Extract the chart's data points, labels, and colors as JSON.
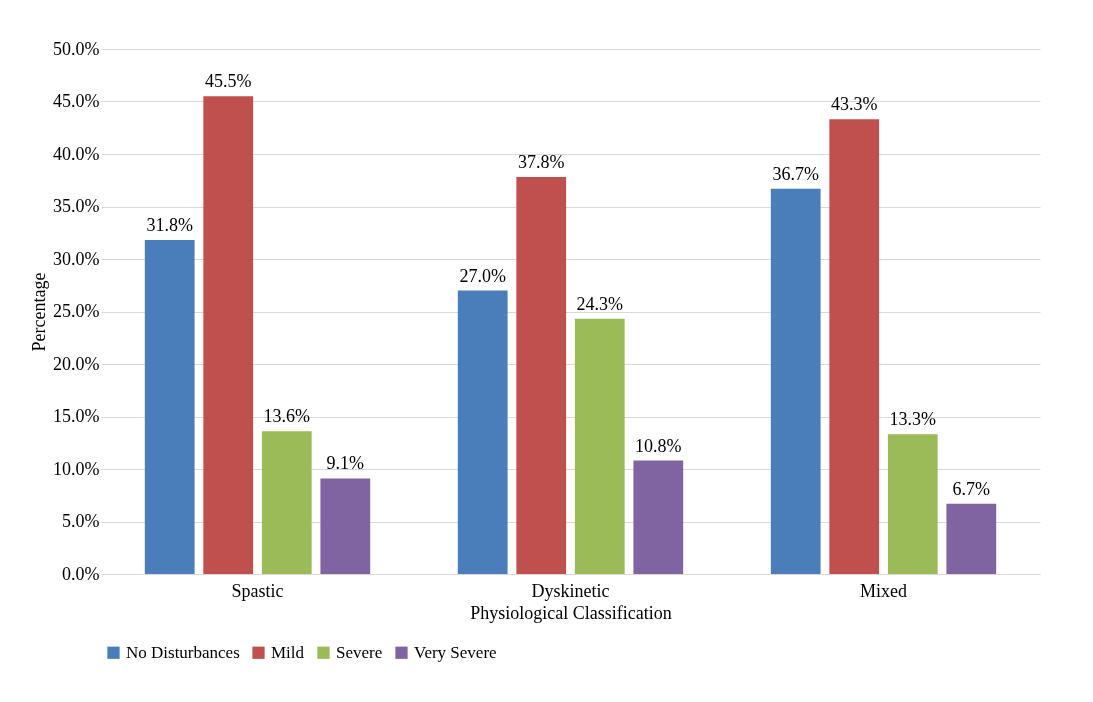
{
  "chart_data": {
    "type": "bar",
    "xlabel": "Physiological Classification",
    "ylabel": "Percentage",
    "categories": [
      "Spastic",
      "Dyskinetic",
      "Mixed"
    ],
    "series": [
      {
        "name": "No Disturbances",
        "color": "#4a7ebb",
        "values": [
          31.8,
          27.0,
          36.7
        ],
        "value_labels": [
          "31.8%",
          "27.0%",
          "36.7%"
        ]
      },
      {
        "name": "Mild",
        "color": "#c0504d",
        "values": [
          45.5,
          37.8,
          43.3
        ],
        "value_labels": [
          "45.5%",
          "37.8%",
          "43.3%"
        ]
      },
      {
        "name": "Severe",
        "color": "#9bbb59",
        "values": [
          13.6,
          24.3,
          13.3
        ],
        "value_labels": [
          "13.6%",
          "24.3%",
          "13.3%"
        ]
      },
      {
        "name": "Very Severe",
        "color": "#8064a2",
        "values": [
          9.1,
          10.8,
          6.7
        ],
        "value_labels": [
          "9.1%",
          "10.8%",
          "6.7%"
        ]
      }
    ],
    "ylim": [
      0,
      50
    ],
    "yticks": [
      {
        "value": 0,
        "label": "0.0%"
      },
      {
        "value": 5,
        "label": "5.0%"
      },
      {
        "value": 10,
        "label": "10.0%"
      },
      {
        "value": 15,
        "label": "15.0%"
      },
      {
        "value": 20,
        "label": "20.0%"
      },
      {
        "value": 25,
        "label": "25.0%"
      },
      {
        "value": 30,
        "label": "30.0%"
      },
      {
        "value": 35,
        "label": "35.0%"
      },
      {
        "value": 40,
        "label": "40.0%"
      },
      {
        "value": 45,
        "label": "45.0%"
      },
      {
        "value": 50,
        "label": "50.0%"
      }
    ],
    "grid": "y",
    "legend": "bottom"
  }
}
